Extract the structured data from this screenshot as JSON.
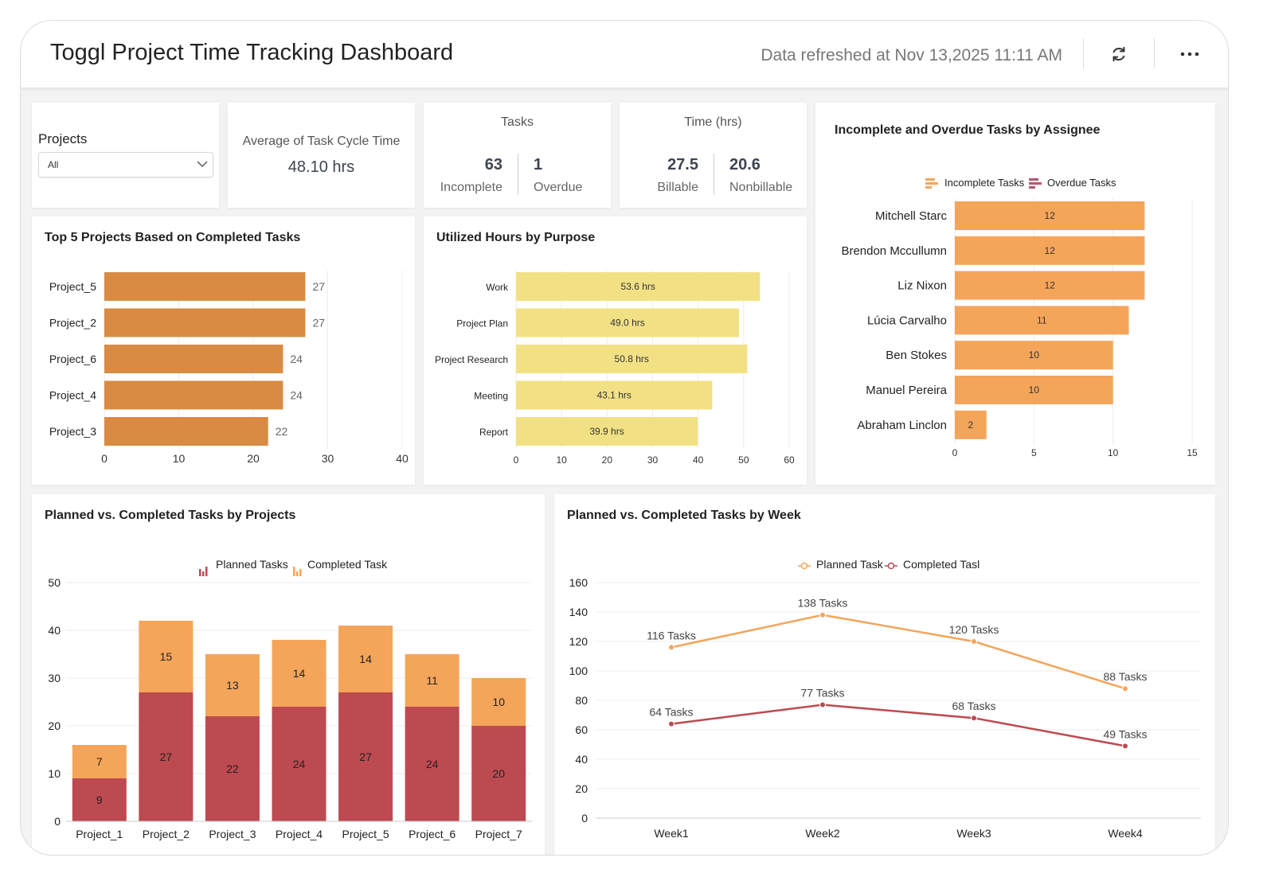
{
  "header": {
    "title": "Toggl Project Time Tracking Dashboard",
    "refreshed": "Data refreshed at Nov 13,2025 11:11 AM",
    "refresh_icon": "refresh-icon",
    "more_icon": "more-horizontal-icon"
  },
  "filter": {
    "label": "Projects",
    "value": "All"
  },
  "avg_cycle": {
    "label": "Average of Task Cycle Time",
    "value": "48.10 hrs"
  },
  "tasks": {
    "title": "Tasks",
    "incomplete_value": "63",
    "incomplete_label": "Incomplete",
    "overdue_value": "1",
    "overdue_label": "Overdue"
  },
  "time": {
    "title": "Time (hrs)",
    "billable_value": "27.5",
    "billable_label": "Billable",
    "nonbillable_value": "20.6",
    "nonbillable_label": "Nonbillable"
  },
  "colors": {
    "orange": "#f4a55a",
    "dark_orange": "#d98b43",
    "yellow": "#f2e184",
    "red": "#bc4a50",
    "overdue": "#b5566f"
  },
  "chart_data": [
    {
      "id": "top5",
      "type": "bar",
      "orientation": "horizontal",
      "title": "Top 5 Projects Based on Completed Tasks",
      "categories": [
        "Project_5",
        "Project_2",
        "Project_6",
        "Project_4",
        "Project_3"
      ],
      "values": [
        27,
        27,
        24,
        24,
        22
      ],
      "xlim": [
        0,
        40
      ],
      "ticks": [
        "0",
        "10",
        "20",
        "30",
        "40"
      ],
      "grid": true
    },
    {
      "id": "purpose",
      "type": "bar",
      "orientation": "horizontal",
      "title": "Utilized Hours by Purpose",
      "categories": [
        "Work",
        "Project Plan",
        "Project Research",
        "Meeting",
        "Report"
      ],
      "values": [
        53.6,
        49.0,
        50.8,
        43.1,
        39.9
      ],
      "data_labels": [
        "53.6 hrs",
        "49.0 hrs",
        "50.8 hrs",
        "43.1 hrs",
        "39.9 hrs"
      ],
      "xlim": [
        0,
        60
      ],
      "ticks": [
        "0",
        "10",
        "20",
        "30",
        "40",
        "50",
        "60"
      ],
      "grid": true
    },
    {
      "id": "assignee",
      "type": "bar",
      "orientation": "horizontal",
      "title": "Incomplete and Overdue Tasks by Assignee",
      "categories": [
        "Mitchell Starc",
        "Brendon Mccullumn",
        "Liz Nixon",
        "Lúcia Carvalho",
        "Ben Stokes",
        "Manuel Pereira",
        "Abraham Linclon"
      ],
      "series": [
        {
          "name": "Incomplete Tasks",
          "values": [
            12,
            12,
            12,
            11,
            10,
            10,
            2
          ]
        },
        {
          "name": "Overdue Tasks"
        }
      ],
      "xlim": [
        0,
        15
      ],
      "ticks": [
        "0",
        "5",
        "10",
        "15"
      ],
      "legend": "top",
      "grid": true
    },
    {
      "id": "projects_stacked",
      "type": "bar",
      "stacked": true,
      "title": "Planned vs. Completed Tasks by Projects",
      "categories": [
        "Project_1",
        "Project_2",
        "Project_3",
        "Project_4",
        "Project_5",
        "Project_6",
        "Project_7"
      ],
      "series": [
        {
          "name": "Planned Tasks",
          "values": [
            9,
            27,
            22,
            24,
            27,
            24,
            20
          ]
        },
        {
          "name": "Completed Task",
          "values": [
            7,
            15,
            13,
            14,
            14,
            11,
            10
          ]
        }
      ],
      "ylim": [
        0,
        50
      ],
      "ticks": [
        "0",
        "10",
        "20",
        "30",
        "40",
        "50"
      ],
      "legend": "top",
      "grid": true
    },
    {
      "id": "weekly",
      "type": "line",
      "title": "Planned vs. Completed Tasks by Week",
      "categories": [
        "Week1",
        "Week2",
        "Week3",
        "Week4"
      ],
      "series": [
        {
          "name": "Planned Task",
          "values": [
            116,
            138,
            120,
            88
          ],
          "data_labels": [
            "116 Tasks",
            "138 Tasks",
            "120 Tasks",
            "88 Tasks"
          ]
        },
        {
          "name": "Completed Tasl",
          "values": [
            64,
            77,
            68,
            49
          ],
          "data_labels": [
            "64 Tasks",
            "77 Tasks",
            "68 Tasks",
            "49 Tasks"
          ]
        }
      ],
      "ylim": [
        0,
        160
      ],
      "ticks": [
        "0",
        "20",
        "40",
        "60",
        "80",
        "100",
        "120",
        "140",
        "160"
      ],
      "legend": "top",
      "grid": true
    }
  ]
}
